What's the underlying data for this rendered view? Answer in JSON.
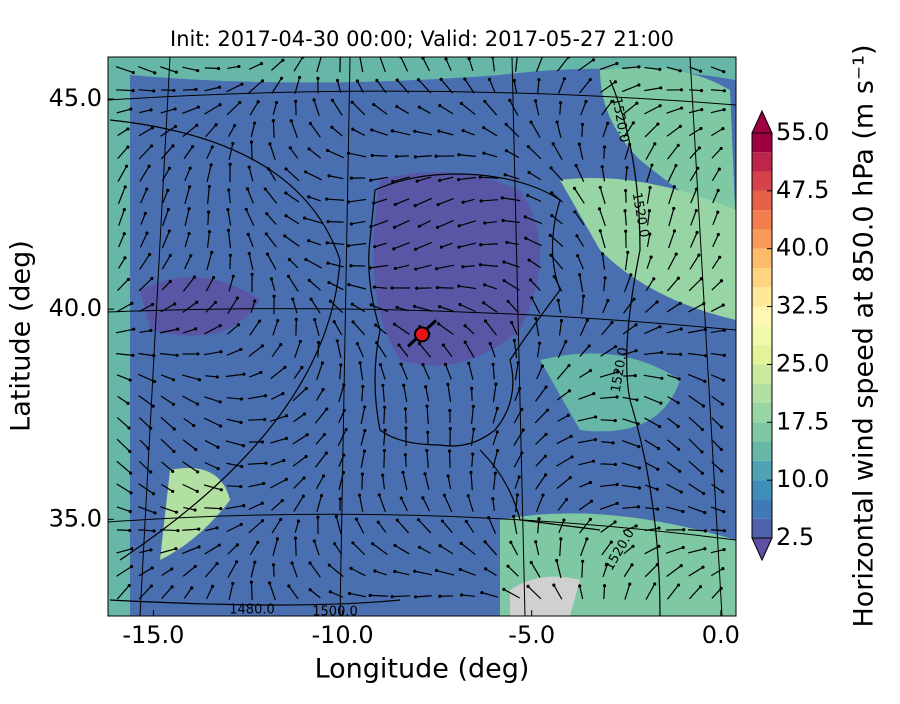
{
  "chart_data": {
    "type": "map",
    "title": "Init: 2017-04-30 00:00; Valid: 2017-05-27 21:00",
    "x_label": "Longitude (deg)",
    "y_label": "Latitude (deg)",
    "xlim": [
      -16.2,
      0.4
    ],
    "ylim": [
      32.7,
      46.0
    ],
    "xticks": [
      {
        "value": -15,
        "label": "-15.0"
      },
      {
        "value": -10,
        "label": "-10.0"
      },
      {
        "value": -5,
        "label": "-5.0"
      },
      {
        "value": 0,
        "label": "0.0"
      }
    ],
    "yticks": [
      {
        "value": 35,
        "label": "35.0"
      },
      {
        "value": 40,
        "label": "40.0"
      },
      {
        "value": 45,
        "label": "45.0"
      }
    ],
    "colorbar": {
      "label": "Horizontal wind speed at 850.0 hPa (m s⁻¹)",
      "lim": [
        2.5,
        55
      ],
      "ticks": [
        2.5,
        {
          "value": 10,
          "label": "10.0"
        },
        17.5,
        {
          "value": 25,
          "label": "25.0"
        },
        32.5,
        {
          "value": 40,
          "label": "40.0"
        },
        47.5,
        {
          "value": 55,
          "label": "55.0"
        }
      ],
      "colors": [
        "#4f63ad",
        "#3f79b6",
        "#3f8eb9",
        "#4fa3b3",
        "#66b7a7",
        "#7ec9a4",
        "#98d5a4",
        "#b2e0a2",
        "#cbe99d",
        "#e3f399",
        "#f2f9ab",
        "#fef8b3",
        "#fee99a",
        "#fed481",
        "#fdbb6c",
        "#fa9b5a",
        "#f47d4d",
        "#e65f47",
        "#d6424b",
        "#be254a",
        "#9e0142"
      ],
      "under_color": "#5e4fa2",
      "over_color": "#9e0142"
    },
    "contour_labels": [
      "1520.0",
      "1520.0",
      "1520.0",
      "1520.0",
      "1480.0",
      "1500.0"
    ],
    "marker": {
      "lon": -7.9,
      "lat": 39.4,
      "color": "#e8141b"
    }
  }
}
